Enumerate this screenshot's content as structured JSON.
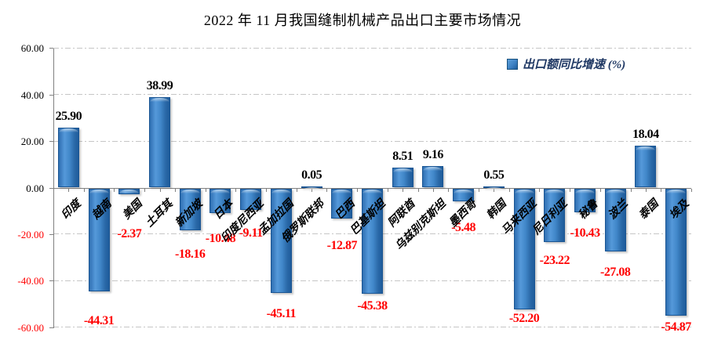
{
  "title": "2022 年 11 月我国缝制机械产品出口主要市场情况",
  "legend": {
    "label": "出口额同比增速 (%)",
    "marker_color": "#3E82C4"
  },
  "y_axis": {
    "tick_labels": [
      "60.00",
      "40.00",
      "20.00",
      "0.00",
      "-20.00",
      "-40.00",
      "-60.00"
    ],
    "tick_values": [
      60,
      40,
      20,
      0,
      -20,
      -40,
      -60
    ],
    "positive_color": "#000000",
    "negative_color": "#FF0000"
  },
  "chart_data": {
    "type": "bar",
    "title": "2022 年 11 月我国缝制机械产品出口主要市场情况",
    "legend_entries": [
      "出口额同比增速 (%)"
    ],
    "legend_position": "top-right",
    "grid": true,
    "ylim": [
      -60,
      60
    ],
    "ytick_step": 20,
    "categories": [
      "印度",
      "越南",
      "美国",
      "土耳其",
      "新加坡",
      "日本",
      "印度尼西亚",
      "孟加拉国",
      "俄罗斯联邦",
      "巴西",
      "巴基斯坦",
      "阿联酋",
      "乌兹别克斯坦",
      "墨西哥",
      "韩国",
      "马来西亚",
      "尼日利亚",
      "秘鲁",
      "波兰",
      "泰国",
      "埃及"
    ],
    "values": [
      25.9,
      -44.31,
      -2.37,
      38.99,
      -18.16,
      -10.48,
      -9.11,
      -45.11,
      0.05,
      -12.87,
      -45.38,
      8.51,
      9.16,
      -5.48,
      0.55,
      -52.2,
      -23.22,
      -10.43,
      -27.08,
      18.04,
      -54.87
    ],
    "data_labels": [
      "25.90",
      "-44.31",
      "-2.37",
      "38.99",
      "-18.16",
      "-10.48",
      "-9.11",
      "-45.11",
      "0.05",
      "-12.87",
      "-45.38",
      "8.51",
      "9.16",
      "-5.48",
      "0.55",
      "-52.20",
      "-23.22",
      "-10.43",
      "-27.08",
      "18.04",
      "-54.87"
    ],
    "bar_color": "#3E82C4",
    "positive_label_color": "#000000",
    "negative_label_color": "#FF0000"
  }
}
